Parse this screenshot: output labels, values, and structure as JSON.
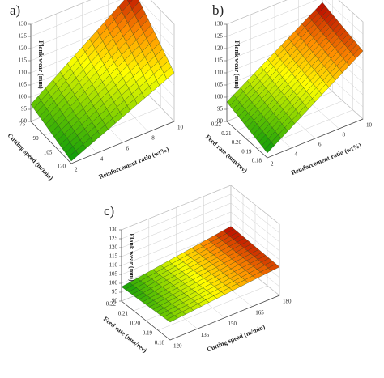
{
  "chart_data": [
    {
      "type": "surface",
      "title": "a)",
      "zlabel": "Flank wear (mm)",
      "xlabel": "Cutting speed (m/min)",
      "ylabel": "Reinforcement ratio (wt%)",
      "xlim": [
        75,
        120
      ],
      "xticks": [
        75,
        90,
        105,
        120
      ],
      "ylim": [
        2,
        10
      ],
      "yticks": [
        2,
        4,
        6,
        8,
        10
      ],
      "zlim": [
        90,
        130
      ],
      "zticks": [
        90,
        95,
        100,
        105,
        110,
        115,
        120,
        125,
        130
      ],
      "z": [
        [
          97,
          127
        ],
        [
          91,
          110
        ]
      ],
      "colormap": [
        "#0a9a0a",
        "#7cd000",
        "#ffff00",
        "#ff8c00",
        "#b40000"
      ],
      "grid": true
    },
    {
      "type": "surface",
      "title": "b)",
      "zlabel": "Flank wear (mm)",
      "xlabel": "Feed rate (mm/rev)",
      "ylabel": "Reinforcement ratio (wt%)",
      "xlim": [
        0.22,
        0.18
      ],
      "xticks": [
        0.22,
        0.21,
        {
          "value": 0.2,
          "label": "0.20"
        },
        0.19,
        0.18
      ],
      "ylim": [
        2,
        10
      ],
      "yticks": [
        2,
        4,
        6,
        8,
        10
      ],
      "zlim": [
        90,
        130
      ],
      "zticks": [
        90,
        95,
        100,
        105,
        110,
        115,
        120,
        125,
        130
      ],
      "z": [
        [
          98,
          123
        ],
        [
          92,
          118
        ]
      ],
      "colormap": [
        "#0a9a0a",
        "#7cd000",
        "#ffff00",
        "#ff8c00",
        "#b40000"
      ],
      "grid": true
    },
    {
      "type": "surface",
      "title": "c)",
      "zlabel": "Flank wear (mm)",
      "xlabel": "Feed rate (mm/rev)",
      "ylabel": "Cutting speed (m/min)",
      "xlim": [
        0.22,
        0.18
      ],
      "xticks": [
        0.22,
        0.21,
        {
          "value": 0.2,
          "label": "0.20"
        },
        0.19,
        0.18
      ],
      "ylim": [
        120,
        180
      ],
      "yticks": [
        120,
        135,
        150,
        165,
        180
      ],
      "zlim": [
        90,
        130
      ],
      "zticks": [
        90,
        95,
        100,
        105,
        110,
        115,
        120,
        125,
        130
      ],
      "z": [
        [
          98,
          107
        ],
        [
          100,
          106
        ]
      ],
      "colormap": [
        "#0a9a0a",
        "#7cd000",
        "#ffff00",
        "#ff8c00",
        "#b40000"
      ],
      "grid": true
    }
  ]
}
